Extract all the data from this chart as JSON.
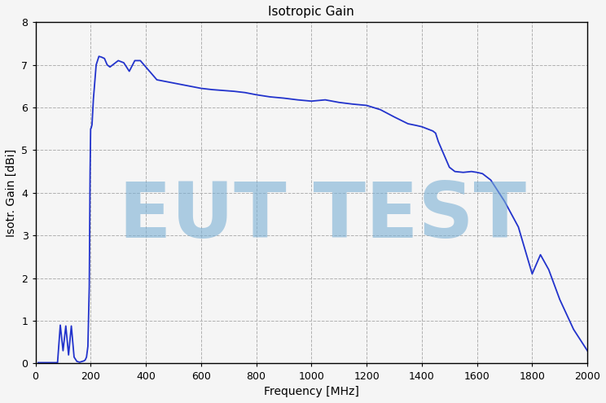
{
  "title": "Isotropic Gain",
  "xlabel": "Frequency [MHz]",
  "ylabel": "Isotr. Gain [dBi]",
  "xlim": [
    0,
    2000
  ],
  "ylim": [
    0,
    8
  ],
  "xticks": [
    0,
    200,
    400,
    600,
    800,
    1000,
    1200,
    1400,
    1600,
    1800,
    2000
  ],
  "yticks": [
    0,
    1,
    2,
    3,
    4,
    5,
    6,
    7,
    8
  ],
  "line_color": "#2233cc",
  "grid_color": "#b0b0b0",
  "watermark_text": "EUT TEST",
  "watermark_color": "#7aafd4",
  "background_color": "#f5f5f5",
  "freq": [
    10,
    80,
    90,
    100,
    110,
    120,
    130,
    140,
    150,
    155,
    160,
    165,
    170,
    175,
    180,
    185,
    190,
    195,
    198,
    200,
    202,
    205,
    210,
    220,
    230,
    240,
    250,
    260,
    270,
    280,
    300,
    320,
    340,
    360,
    380,
    400,
    440,
    480,
    520,
    560,
    600,
    640,
    680,
    720,
    760,
    800,
    850,
    900,
    950,
    1000,
    1050,
    1100,
    1150,
    1200,
    1250,
    1300,
    1350,
    1380,
    1400,
    1420,
    1440,
    1450,
    1460,
    1480,
    1500,
    1520,
    1550,
    1580,
    1600,
    1620,
    1650,
    1700,
    1750,
    1800,
    1830,
    1860,
    1900,
    1950,
    2000
  ],
  "gain": [
    0.02,
    0.02,
    0.9,
    0.3,
    0.88,
    0.2,
    0.88,
    0.15,
    0.05,
    0.04,
    0.03,
    0.04,
    0.05,
    0.06,
    0.08,
    0.15,
    0.4,
    1.8,
    4.5,
    5.5,
    5.52,
    5.6,
    6.2,
    7.0,
    7.2,
    7.18,
    7.15,
    7.0,
    6.95,
    7.0,
    7.1,
    7.05,
    6.85,
    7.1,
    7.1,
    6.95,
    6.65,
    6.6,
    6.55,
    6.5,
    6.45,
    6.42,
    6.4,
    6.38,
    6.35,
    6.3,
    6.25,
    6.22,
    6.18,
    6.15,
    6.18,
    6.12,
    6.08,
    6.05,
    5.95,
    5.78,
    5.62,
    5.58,
    5.55,
    5.5,
    5.45,
    5.4,
    5.2,
    4.9,
    4.6,
    4.5,
    4.48,
    4.5,
    4.48,
    4.45,
    4.3,
    3.8,
    3.2,
    2.1,
    2.55,
    2.2,
    1.5,
    0.8,
    0.3
  ]
}
